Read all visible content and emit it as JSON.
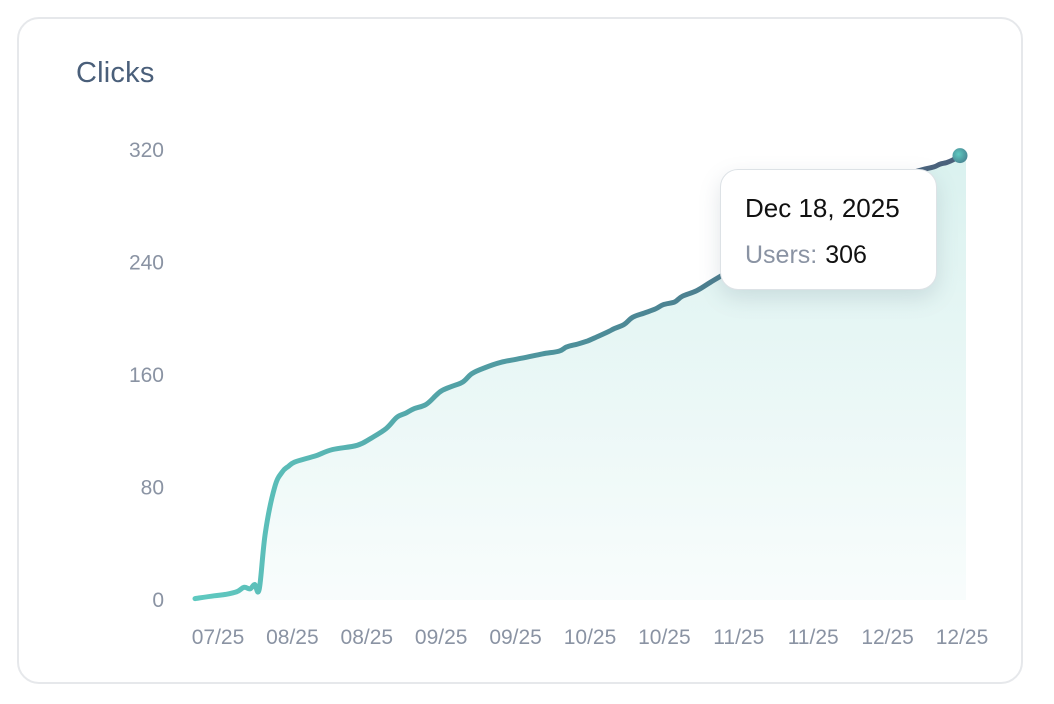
{
  "card": {
    "title": "Clicks"
  },
  "tooltip": {
    "date": "Dec 18, 2025",
    "label": "Users:",
    "value": "306"
  },
  "chart_data": {
    "type": "area",
    "title": "Clicks",
    "xlabel": "",
    "ylabel": "",
    "ylim": [
      0,
      320
    ],
    "y_ticks": [
      0,
      80,
      160,
      240,
      320
    ],
    "x_tick_labels": [
      "07/25",
      "08/25",
      "08/25",
      "09/25",
      "09/25",
      "10/25",
      "10/25",
      "11/25",
      "11/25",
      "12/25",
      "12/25"
    ],
    "grid": false,
    "legend": "none",
    "colors": {
      "line_start": "#5ec9c0",
      "line_mid": "#4d8f9a",
      "line_end": "#4a5f7a",
      "fill": "#d3efec"
    },
    "x_range": [
      0,
      100
    ],
    "series": [
      {
        "x": [
          0,
          2.5,
          4,
          5.5,
          6.4,
          7.2,
          7.8,
          8.4,
          9.2,
          10.4,
          11.4,
          12.2,
          13,
          14.8,
          16,
          18,
          21.2,
          23,
          25,
          26.4,
          27.6,
          28.6,
          30.2,
          31.6,
          32.3,
          33.6,
          35,
          36.2,
          37.8,
          40,
          42.8,
          45.4,
          47.6,
          48.6,
          50,
          51.2,
          52.5,
          54.1,
          54.8,
          56.1,
          57.2,
          58.7,
          60.2,
          61.2,
          62.7,
          63.7,
          65.6,
          67.4,
          69.6,
          72.4,
          74.8,
          76.4,
          77.8,
          79.6,
          82,
          84.2,
          86.4,
          88.2,
          90,
          91.6,
          93.2,
          95.1,
          96.6,
          97.4,
          98.2,
          99.1,
          100
        ],
        "y": [
          1,
          3,
          4,
          6,
          9,
          8,
          11,
          8,
          48,
          80,
          91,
          95,
          98,
          101,
          103,
          107,
          110,
          115,
          122,
          130,
          133,
          136,
          139,
          146,
          149,
          152,
          155,
          161,
          165,
          169,
          172,
          175,
          177,
          180,
          182,
          184,
          187,
          191,
          193,
          196,
          201,
          204,
          207,
          210,
          212,
          216,
          220,
          226,
          233,
          241,
          249,
          256,
          262,
          268,
          275,
          281,
          287,
          292,
          297,
          300,
          303,
          306,
          308,
          310,
          311,
          313,
          316
        ]
      }
    ],
    "highlight": {
      "x": 100,
      "y": 316
    }
  }
}
